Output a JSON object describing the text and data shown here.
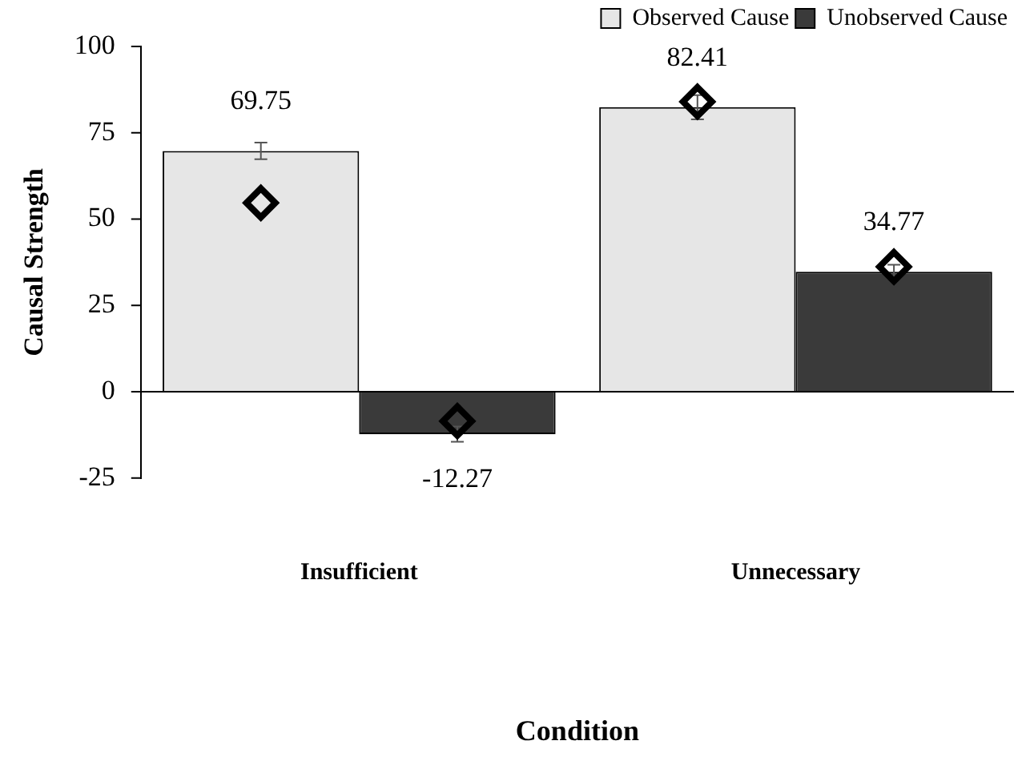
{
  "chart_data": {
    "type": "bar",
    "xlabel": "Condition",
    "ylabel": "Causal Strength",
    "categories": [
      "Insufficient",
      "Unnecessary"
    ],
    "ylim": [
      -25,
      100
    ],
    "yticks": [
      -25,
      0,
      25,
      50,
      75,
      100
    ],
    "legend": "top right",
    "series": [
      {
        "name": "Observed Cause",
        "color": "#e6e6e6",
        "values": [
          69.75,
          82.41
        ],
        "errors": [
          2.4,
          3.5
        ],
        "value_labels": [
          "69.75",
          "82.41"
        ]
      },
      {
        "name": "Unobserved Cause",
        "color": "#3a3a3a",
        "values": [
          -12.27,
          34.77
        ],
        "errors": [
          2.2,
          2
        ],
        "value_labels": [
          "-12.27",
          "34.77"
        ]
      },
      {
        "type": "scatter",
        "color": "#000000",
        "marker": "diamond",
        "x": [
          "Insufficient",
          "Unnecessary"
        ],
        "values": [
          54.7,
          84.0
        ]
      },
      {
        "type": "scatter",
        "color": "#000000",
        "marker": "diamond",
        "x": [
          "Insufficient",
          "Unnecessary"
        ],
        "values": [
          -8.5,
          36.2
        ]
      }
    ]
  }
}
